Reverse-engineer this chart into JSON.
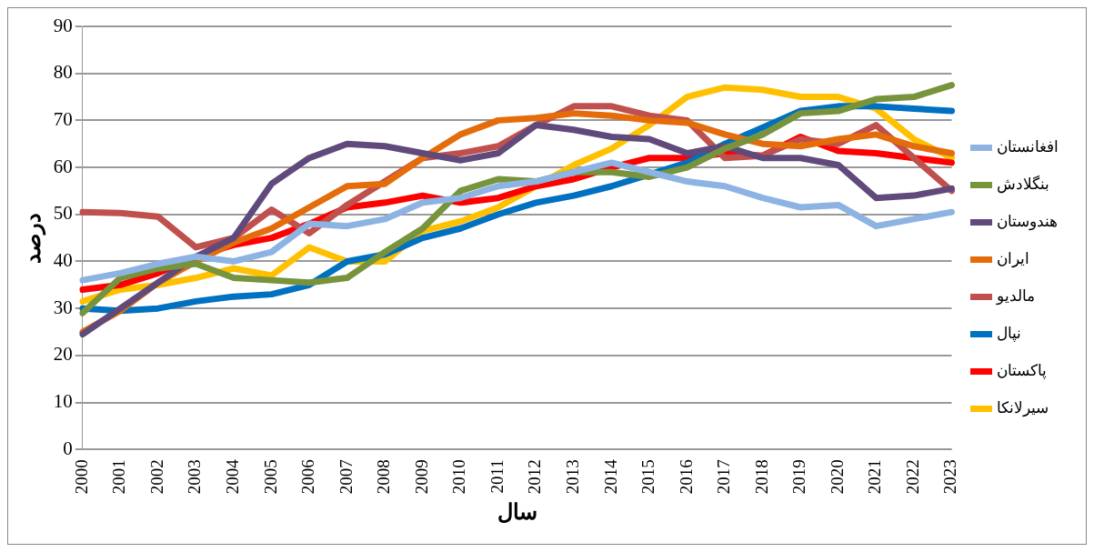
{
  "chart_data": {
    "type": "line",
    "xlabel": "سال",
    "ylabel": "درصد",
    "categories": [
      "2000",
      "2001",
      "2002",
      "2003",
      "2004",
      "2005",
      "2006",
      "2007",
      "2008",
      "2009",
      "2010",
      "2011",
      "2012",
      "2013",
      "2014",
      "2015",
      "2016",
      "2017",
      "2018",
      "2019",
      "2020",
      "2021",
      "2022",
      "2023"
    ],
    "ylim": [
      0,
      90
    ],
    "yticks": [
      0,
      10,
      20,
      30,
      40,
      50,
      60,
      70,
      80,
      90
    ],
    "grid": "y",
    "legend": "right",
    "marker": "none",
    "line_style": "solid",
    "series": [
      {
        "name": "افغانستان",
        "color": "#8db3e2",
        "values": [
          36,
          37.5,
          39.5,
          41,
          40,
          42,
          48,
          47.5,
          49,
          52.5,
          53.5,
          56,
          57,
          59,
          61,
          59,
          57,
          56,
          53.5,
          51.5,
          52,
          47.5,
          49,
          50.5
        ]
      },
      {
        "name": "بنگلادش",
        "color": "#77933c",
        "values": [
          29,
          36.5,
          38.5,
          39.5,
          36.5,
          36,
          35.5,
          36.5,
          42,
          47,
          55,
          57.5,
          57,
          59,
          59,
          58,
          60,
          64,
          67,
          71.5,
          72,
          74.5,
          75,
          77.5
        ]
      },
      {
        "name": "هندوستان",
        "color": "#604a7b",
        "values": [
          24.5,
          30,
          35.5,
          41,
          45,
          56.5,
          62,
          65,
          64.5,
          63,
          61.5,
          63,
          69,
          68,
          66.5,
          66,
          63,
          64.5,
          62,
          62,
          60.5,
          53.5,
          54,
          55.5
        ]
      },
      {
        "name": "ایران",
        "color": "#e46c0a",
        "values": [
          25,
          29.5,
          35.5,
          40,
          44,
          47,
          51.5,
          56,
          56.5,
          62,
          67,
          70,
          70.5,
          71.5,
          71,
          70,
          69.5,
          67,
          65,
          64.5,
          66,
          67,
          64.5,
          63
        ]
      },
      {
        "name": "مالدیو",
        "color": "#c0504d",
        "values": [
          50.5,
          50.3,
          49.5,
          43,
          45,
          51,
          46,
          52,
          57,
          62,
          63,
          64.5,
          69,
          73,
          73,
          71,
          70,
          62,
          62.5,
          66,
          65,
          69,
          62,
          55
        ]
      },
      {
        "name": "نپال",
        "color": "#0070c0",
        "values": [
          30,
          29.5,
          30,
          31.5,
          32.5,
          33,
          35,
          40,
          41.5,
          45,
          47,
          50,
          52.5,
          54,
          56,
          58.5,
          61,
          65,
          68.5,
          72,
          73,
          73,
          72.5,
          72
        ]
      },
      {
        "name": "پاکستان",
        "color": "#ff0000",
        "values": [
          34,
          35,
          37.5,
          41,
          43.5,
          45,
          48,
          51.5,
          52.5,
          54,
          52.5,
          53.5,
          56,
          57.5,
          60,
          62,
          62,
          63,
          62.5,
          66.5,
          63.5,
          63,
          62,
          61
        ]
      },
      {
        "name": "سیرلانکا",
        "color": "#ffc000",
        "values": [
          31.5,
          34,
          35,
          36.5,
          38.5,
          37,
          43,
          40,
          40,
          46.5,
          48.5,
          51.5,
          56,
          60.5,
          64,
          69,
          75,
          77,
          76.5,
          75,
          75,
          72.5,
          66,
          62
        ]
      }
    ]
  }
}
